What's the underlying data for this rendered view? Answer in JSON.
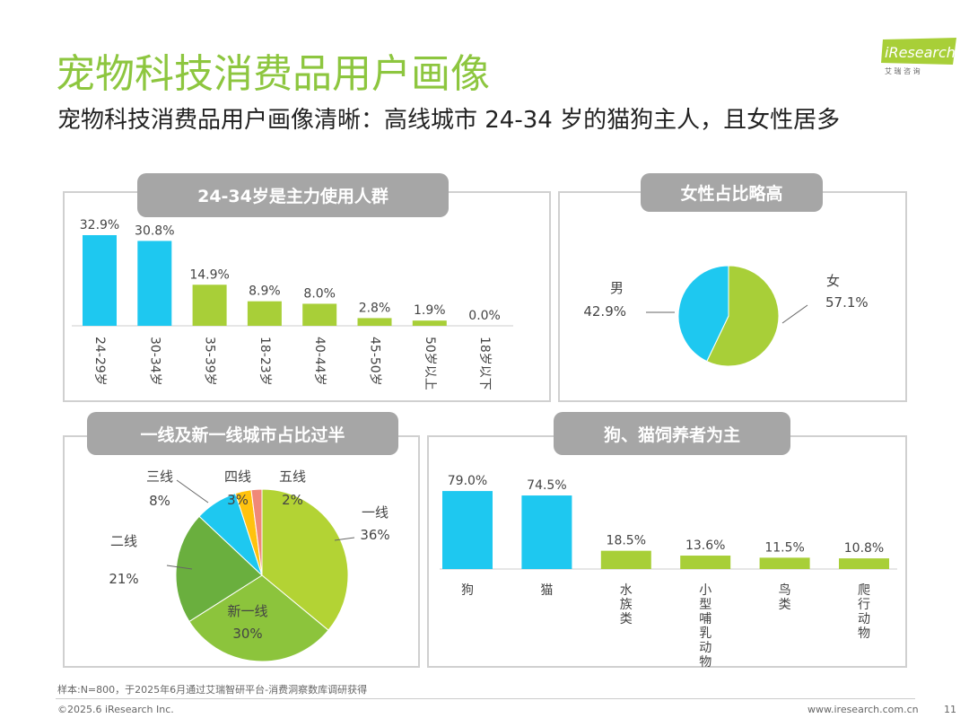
{
  "title": "宠物科技消费品用户画像",
  "subtitle": "宠物科技消费品用户画像清晰：高线城市 24-34 岁的猫狗主人，且女性居多",
  "logo": {
    "text": "iResearch",
    "sub": "艾 瑞 咨 询"
  },
  "colors": {
    "accent": "#8dc63f",
    "blue": "#1ec8f0",
    "green": "#a8cf38",
    "tab": "#a6a6a6"
  },
  "footer": {
    "note": "样本:N=800，于2025年6月通过艾瑞智研平台-消费洞察数库调研获得",
    "copyright": "©2025.6 iResearch Inc.",
    "url": "www.iresearch.com.cn",
    "page": "11"
  },
  "chart_data": [
    {
      "type": "bar",
      "title": "24-34岁是主力使用人群",
      "categories": [
        "24-29岁",
        "30-34岁",
        "35-39岁",
        "18-23岁",
        "40-44岁",
        "45-50岁",
        "50岁以上",
        "18岁以下"
      ],
      "values": [
        32.9,
        30.8,
        14.9,
        8.9,
        8.0,
        2.8,
        1.9,
        0.0
      ],
      "labels": [
        "32.9%",
        "30.8%",
        "14.9%",
        "8.9%",
        "8.0%",
        "2.8%",
        "1.9%",
        "0.0%"
      ],
      "highlight_count": 2
    },
    {
      "type": "pie",
      "title": "女性占比略高",
      "slices": [
        {
          "name": "女",
          "value": 57.1,
          "label": "57.1%",
          "color": "#a8cf38"
        },
        {
          "name": "男",
          "value": 42.9,
          "label": "42.9%",
          "color": "#1ec8f0"
        }
      ]
    },
    {
      "type": "pie",
      "title": "一线及新一线城市占比过半",
      "slices": [
        {
          "name": "一线",
          "value": 36,
          "label": "36%",
          "color": "#b3d334"
        },
        {
          "name": "新一线",
          "value": 30,
          "label": "30%",
          "color": "#8cc43c"
        },
        {
          "name": "二线",
          "value": 21,
          "label": "21%",
          "color": "#6aaf3e"
        },
        {
          "name": "三线",
          "value": 8,
          "label": "8%",
          "color": "#1ec8f0"
        },
        {
          "name": "四线",
          "value": 3,
          "label": "3%",
          "color": "#ffc20e"
        },
        {
          "name": "五线",
          "value": 2,
          "label": "2%",
          "color": "#f08878"
        }
      ]
    },
    {
      "type": "bar",
      "title": "狗、猫饲养者为主",
      "categories": [
        "狗",
        "猫",
        "水族类",
        "小型哺乳动物",
        "鸟类",
        "爬行动物"
      ],
      "values": [
        79.0,
        74.5,
        18.5,
        13.6,
        11.5,
        10.8
      ],
      "labels": [
        "79.0%",
        "74.5%",
        "18.5%",
        "13.6%",
        "11.5%",
        "10.8%"
      ],
      "highlight_count": 2
    }
  ]
}
